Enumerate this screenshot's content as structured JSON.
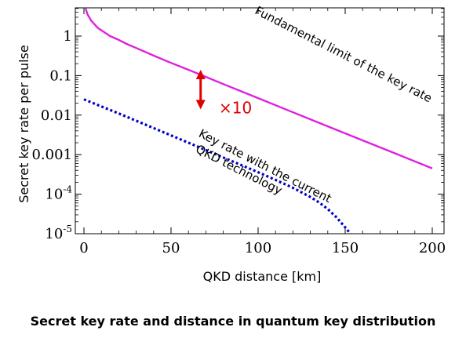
{
  "caption": "Secret key rate and distance in quantum key distribution",
  "chart_data": {
    "type": "line",
    "title": "",
    "xlabel": "QKD distance [km]",
    "ylabel": "Secret key rate per pulse",
    "xlim": [
      0,
      200
    ],
    "ylim": [
      1e-05,
      5
    ],
    "yscale": "log",
    "grid": false,
    "x_ticks": [
      {
        "value": 0,
        "label": "0"
      },
      {
        "value": 50,
        "label": "50"
      },
      {
        "value": 100,
        "label": "100"
      },
      {
        "value": 150,
        "label": "150"
      },
      {
        "value": 200,
        "label": "200"
      }
    ],
    "y_ticks": [
      {
        "value": 1,
        "label": "1",
        "sup": ""
      },
      {
        "value": 0.1,
        "label": "0.1",
        "sup": ""
      },
      {
        "value": 0.01,
        "label": "0.01",
        "sup": ""
      },
      {
        "value": 0.001,
        "label": "0.001",
        "sup": ""
      },
      {
        "value": 0.0001,
        "label": "10",
        "sup": "-4"
      },
      {
        "value": 1e-05,
        "label": "10",
        "sup": "-5"
      }
    ],
    "series": [
      {
        "name": "Fundamental limit of the key rate",
        "color": "#dd22dd",
        "style": "solid",
        "x": [
          1,
          2,
          4,
          6,
          8,
          10,
          15,
          20,
          25,
          30,
          40,
          50,
          60,
          70,
          80,
          100,
          120,
          140,
          160,
          180,
          200
        ],
        "y": [
          5,
          3.6,
          2.5,
          2.0,
          1.6,
          1.4,
          1.0,
          0.8,
          0.62,
          0.5,
          0.32,
          0.21,
          0.14,
          0.093,
          0.061,
          0.027,
          0.0118,
          0.0052,
          0.0023,
          0.00102,
          0.00045
        ]
      },
      {
        "name": "Key rate with the current QKD technology",
        "color": "#0000cc",
        "style": "dotted",
        "x": [
          0,
          20,
          40,
          60,
          80,
          100,
          110,
          120,
          130,
          135,
          140,
          145,
          150,
          153
        ],
        "y": [
          0.025,
          0.011,
          0.0047,
          0.002,
          0.00085,
          0.00036,
          0.00023,
          0.000145,
          8.5e-05,
          6.2e-05,
          4.2e-05,
          2.6e-05,
          1.45e-05,
          1e-05
        ]
      }
    ],
    "annotations": [
      {
        "text": "Fundamental limit of the key rate",
        "x": 148,
        "y": 0.28
      },
      {
        "text": "Key rate with the current",
        "x": 103,
        "y": 0.00042
      },
      {
        "text": "QKD technology",
        "x": 88,
        "y": 0.00034
      },
      {
        "text": "×10",
        "x": 87,
        "y": 0.011,
        "color": "#e00000"
      }
    ],
    "arrow": {
      "x": 67,
      "y_from": 0.014,
      "y_to": 0.14,
      "color": "#e00000"
    }
  }
}
